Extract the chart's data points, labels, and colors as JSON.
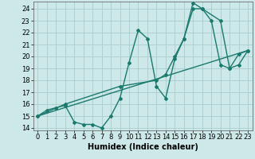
{
  "xlabel": "Humidex (Indice chaleur)",
  "background_color": "#cce8e8",
  "grid_color": "#aacccc",
  "line_color": "#1a7a6e",
  "xlim": [
    -0.5,
    23.5
  ],
  "ylim": [
    13.8,
    24.6
  ],
  "yticks": [
    14,
    15,
    16,
    17,
    18,
    19,
    20,
    21,
    22,
    23,
    24
  ],
  "xticks": [
    0,
    1,
    2,
    3,
    4,
    5,
    6,
    7,
    8,
    9,
    10,
    11,
    12,
    13,
    14,
    15,
    16,
    17,
    18,
    19,
    20,
    21,
    22,
    23
  ],
  "line1_x": [
    0,
    1,
    2,
    3,
    4,
    5,
    6,
    7,
    8,
    9,
    10,
    11,
    12,
    13,
    14,
    15,
    16,
    17,
    18,
    19,
    20,
    21,
    22,
    23
  ],
  "line1_y": [
    15.0,
    15.5,
    15.7,
    15.9,
    14.5,
    14.3,
    14.3,
    14.0,
    15.0,
    16.5,
    19.5,
    22.2,
    21.5,
    17.5,
    16.5,
    19.8,
    21.5,
    24.5,
    24.0,
    23.0,
    19.3,
    19.0,
    20.2,
    20.5
  ],
  "line2_x": [
    0,
    3,
    9,
    13,
    14,
    15,
    16,
    17,
    18,
    20,
    21,
    22,
    23
  ],
  "line2_y": [
    15.0,
    16.0,
    17.5,
    18.0,
    18.5,
    20.0,
    21.5,
    24.0,
    24.0,
    23.0,
    19.0,
    19.3,
    20.5
  ],
  "line3_x": [
    0,
    23
  ],
  "line3_y": [
    15.0,
    20.5
  ],
  "fontsize_label": 7,
  "fontsize_tick": 6,
  "marker": "D",
  "markersize": 2,
  "linewidth": 1.0
}
